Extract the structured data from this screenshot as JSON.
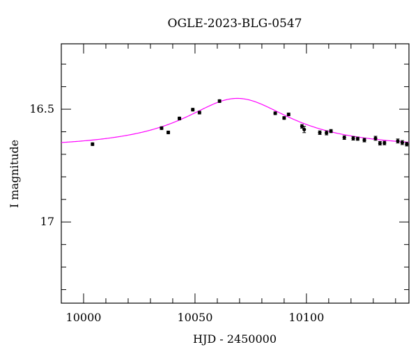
{
  "chart_data": {
    "type": "scatter",
    "title": "OGLE-2023-BLG-0547",
    "xlabel": "HJD - 2450000",
    "ylabel": "I magnitude",
    "xlim": [
      9990,
      10146
    ],
    "ylim": [
      17.36,
      16.21
    ],
    "y_inverted": true,
    "grid": false,
    "x_ticks": [
      {
        "value": 10000,
        "label": "10000"
      },
      {
        "value": 10050,
        "label": "10050"
      },
      {
        "value": 10100,
        "label": "10100"
      }
    ],
    "y_ticks": [
      {
        "value": 16.5,
        "label": "16.5"
      },
      {
        "value": 17,
        "label": "17"
      }
    ],
    "colors": {
      "model": "#ff00ff",
      "points": "#000000"
    },
    "series": [
      {
        "kind": "points",
        "x": [
          10004,
          10035,
          10038,
          10043,
          10049,
          10052,
          10061,
          10086,
          10090,
          10092,
          10098,
          10099,
          10106,
          10109,
          10111,
          10117,
          10121,
          10123,
          10126,
          10131,
          10133,
          10135,
          10141,
          10143,
          10145
        ],
        "y": [
          16.655,
          16.584,
          16.603,
          16.541,
          16.502,
          16.515,
          16.464,
          16.518,
          16.539,
          16.523,
          16.576,
          16.59,
          16.604,
          16.605,
          16.597,
          16.626,
          16.629,
          16.631,
          16.637,
          16.629,
          16.651,
          16.65,
          16.641,
          16.648,
          16.655
        ],
        "err": [
          0.005,
          0.005,
          0.006,
          0.005,
          0.005,
          0.005,
          0.005,
          0.005,
          0.006,
          0.005,
          0.008,
          0.014,
          0.008,
          0.009,
          0.007,
          0.008,
          0.008,
          0.007,
          0.008,
          0.009,
          0.008,
          0.008,
          0.009,
          0.009,
          0.008
        ]
      },
      {
        "kind": "model",
        "model": {
          "baseline": 16.676,
          "peak": 16.452,
          "t0": 10069,
          "tE": 30
        }
      }
    ]
  }
}
